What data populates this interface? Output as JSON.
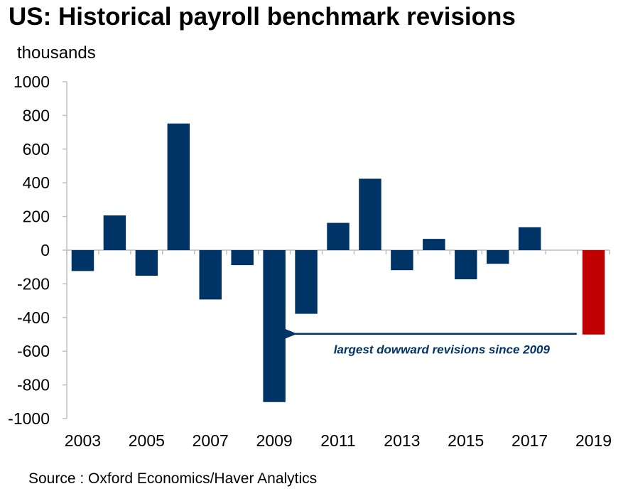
{
  "title": "US: Historical payroll benchmark revisions",
  "source": "Source : Oxford Economics/Haver Analytics",
  "colors": {
    "bar": "#003366",
    "highlight": "#c00000",
    "axis": "#bfbfbf",
    "text": "#000000",
    "annotation": "#003366"
  },
  "chart_data": {
    "type": "bar",
    "title": "US: Historical payroll benchmark revisions",
    "ylabel": "thousands",
    "xlabel": "",
    "ylim": [
      -1000,
      1000
    ],
    "yticks": [
      "1000",
      "800",
      "600",
      "400",
      "200",
      "0",
      "-200",
      "-400",
      "-600",
      "-800",
      "-1000"
    ],
    "ytick_values": [
      1000,
      800,
      600,
      400,
      200,
      0,
      -200,
      -400,
      -600,
      -800,
      -1000
    ],
    "categories": [
      "2003",
      "2004",
      "2005",
      "2006",
      "2007",
      "2008",
      "2009",
      "2010",
      "2011",
      "2012",
      "2013",
      "2014",
      "2015",
      "2016",
      "2017",
      "2018",
      "2019"
    ],
    "xtick_labels": [
      "2003",
      "2005",
      "2007",
      "2009",
      "2011",
      "2013",
      "2015",
      "2017",
      "2019"
    ],
    "values": [
      -124,
      206,
      -152,
      752,
      -293,
      -89,
      -902,
      -378,
      162,
      424,
      -119,
      67,
      -173,
      -81,
      136,
      null,
      -501
    ],
    "highlight_category": "2019",
    "grid": false,
    "annotation": {
      "text": "largest dowward revisions since 2009",
      "from": "2019",
      "to": "2009"
    }
  }
}
